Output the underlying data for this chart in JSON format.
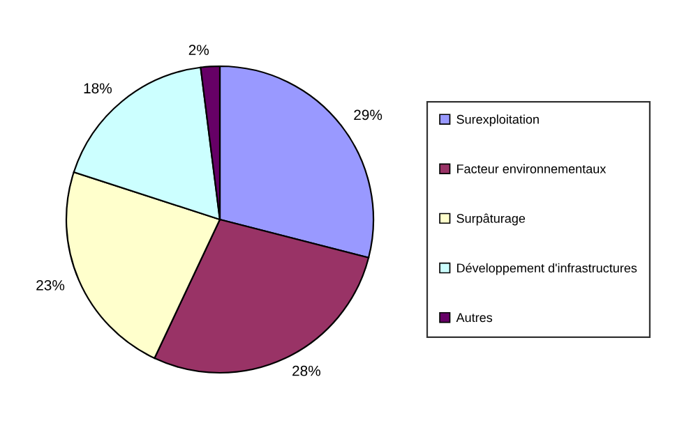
{
  "chart_data": {
    "type": "pie",
    "categories": [
      "Surexploitation",
      "Facteur environnementaux",
      "Surpâturage",
      "Développement d'infrastructures",
      "Autres"
    ],
    "values": [
      29,
      28,
      23,
      18,
      2
    ],
    "value_labels": [
      "29%",
      "28%",
      "23%",
      "18%",
      "2%"
    ],
    "colors": [
      "#9999ff",
      "#993366",
      "#ffffcc",
      "#ccffff",
      "#660066"
    ],
    "legend": "right"
  }
}
